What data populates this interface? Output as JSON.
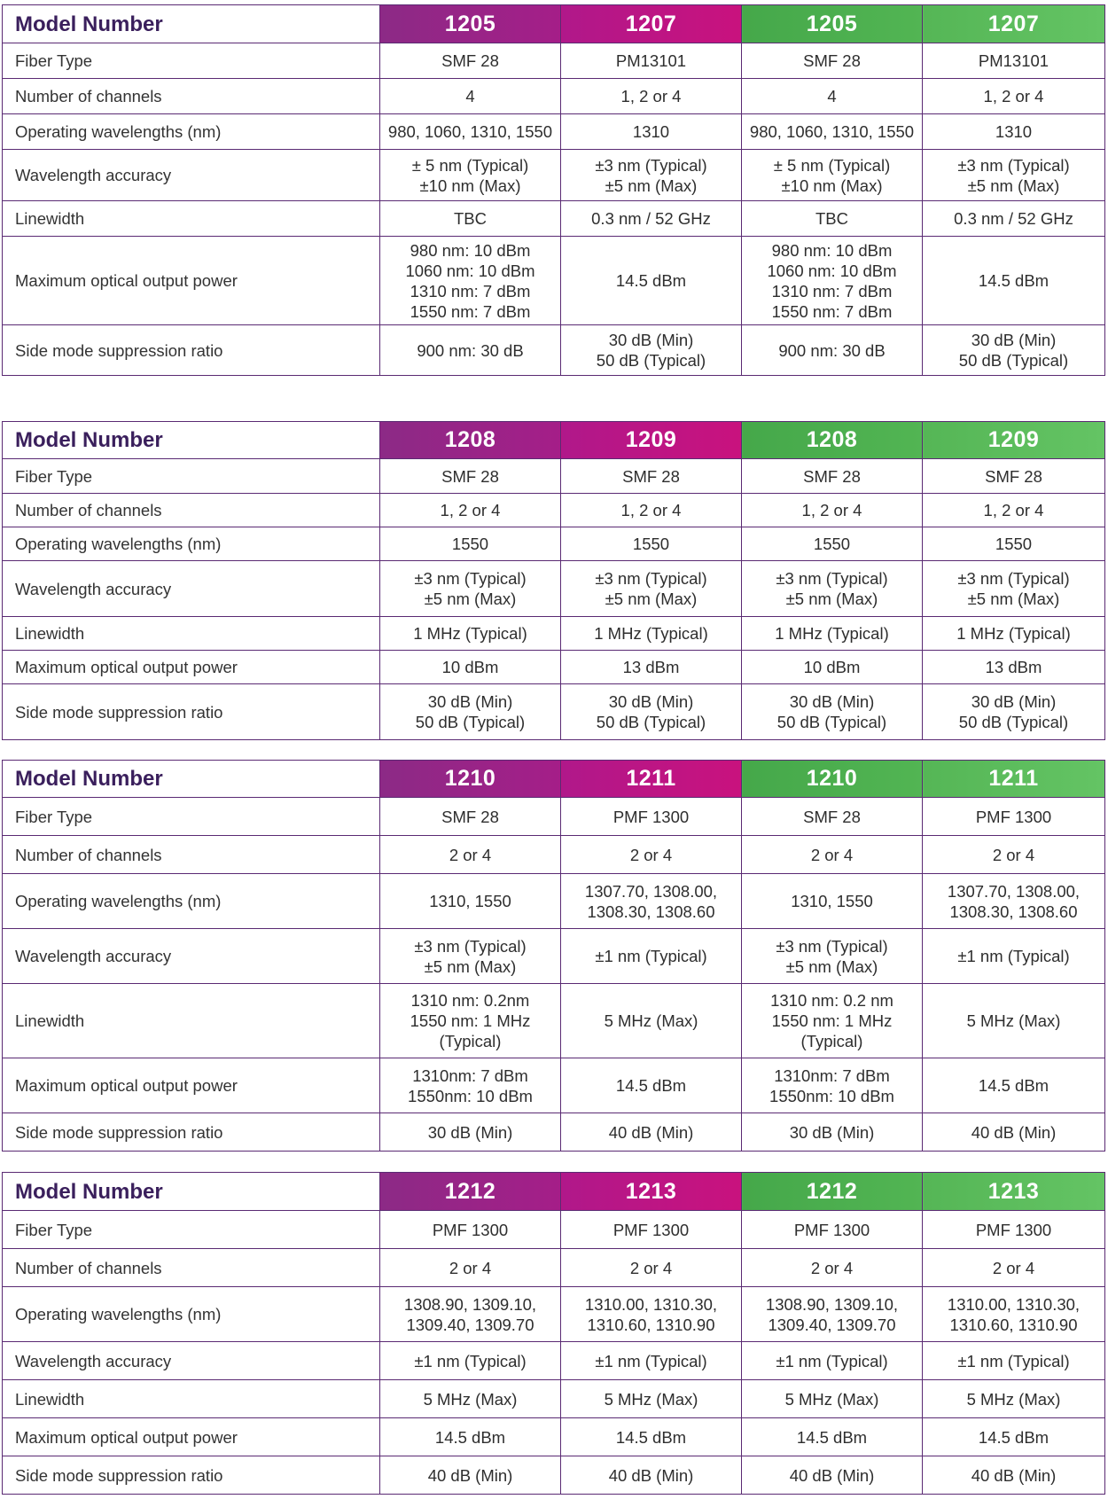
{
  "tables": [
    {
      "header": {
        "label": "Model Number",
        "models": [
          "1205",
          "1207",
          "1205",
          "1207"
        ]
      },
      "rows": [
        {
          "label": "Fiber Type",
          "values": [
            "SMF 28",
            "PM13101",
            "SMF 28",
            "PM13101"
          ]
        },
        {
          "label": "Number of channels",
          "values": [
            "4",
            "1, 2 or 4",
            "4",
            "1, 2 or 4"
          ]
        },
        {
          "label": "Operating wavelengths (nm)",
          "values": [
            "980, 1060, 1310, 1550",
            "1310",
            "980, 1060, 1310, 1550",
            "1310"
          ]
        },
        {
          "label": "Wavelength accuracy",
          "values": [
            "± 5 nm (Typical)\n±10 nm (Max)",
            "±3 nm (Typical)\n±5 nm (Max)",
            "± 5 nm (Typical)\n±10 nm (Max)",
            "±3 nm (Typical)\n±5 nm (Max)"
          ]
        },
        {
          "label": "Linewidth",
          "values": [
            "TBC",
            "0.3 nm / 52 GHz",
            "TBC",
            "0.3 nm / 52 GHz"
          ]
        },
        {
          "label": "Maximum optical output power",
          "values": [
            "980 nm: 10 dBm\n1060 nm: 10 dBm\n1310 nm: 7 dBm\n1550 nm: 7 dBm",
            "14.5 dBm",
            "980 nm: 10 dBm\n1060 nm: 10 dBm\n1310 nm: 7 dBm\n1550 nm: 7 dBm",
            "14.5 dBm"
          ]
        },
        {
          "label": "Side mode suppression ratio",
          "values": [
            "900 nm: 30 dB",
            "30 dB (Min)\n50 dB (Typical)",
            "900 nm: 30 dB",
            "30 dB (Min)\n50 dB (Typical)"
          ]
        }
      ]
    },
    {
      "header": {
        "label": "Model Number",
        "models": [
          "1208",
          "1209",
          "1208",
          "1209"
        ]
      },
      "rows": [
        {
          "label": "Fiber Type",
          "values": [
            "SMF 28",
            "SMF 28",
            "SMF 28",
            "SMF 28"
          ]
        },
        {
          "label": "Number of channels",
          "values": [
            "1, 2 or 4",
            "1, 2 or 4",
            "1, 2 or 4",
            "1, 2 or 4"
          ]
        },
        {
          "label": "Operating wavelengths (nm)",
          "values": [
            "1550",
            "1550",
            "1550",
            "1550"
          ]
        },
        {
          "label": "Wavelength accuracy",
          "values": [
            "±3 nm (Typical)\n±5 nm (Max)",
            "±3 nm (Typical)\n±5 nm (Max)",
            "±3 nm (Typical)\n±5 nm (Max)",
            "±3 nm (Typical)\n±5 nm (Max)"
          ]
        },
        {
          "label": "Linewidth",
          "values": [
            "1 MHz (Typical)",
            "1 MHz (Typical)",
            "1 MHz (Typical)",
            "1 MHz (Typical)"
          ]
        },
        {
          "label": "Maximum optical output power",
          "values": [
            "10 dBm",
            "13 dBm",
            "10 dBm",
            "13 dBm"
          ]
        },
        {
          "label": "Side mode suppression ratio",
          "values": [
            "30 dB (Min)\n50 dB (Typical)",
            "30 dB (Min)\n50 dB (Typical)",
            "30 dB (Min)\n50 dB (Typical)",
            "30 dB (Min)\n50 dB (Typical)"
          ]
        }
      ]
    },
    {
      "header": {
        "label": "Model Number",
        "models": [
          "1210",
          "1211",
          "1210",
          "1211"
        ]
      },
      "rows": [
        {
          "label": "Fiber Type",
          "values": [
            "SMF 28",
            "PMF 1300",
            "SMF 28",
            "PMF 1300"
          ]
        },
        {
          "label": "Number of channels",
          "values": [
            "2 or 4",
            "2 or 4",
            "2 or 4",
            "2 or 4"
          ]
        },
        {
          "label": "Operating wavelengths (nm)",
          "values": [
            "1310, 1550",
            "1307.70, 1308.00,\n1308.30, 1308.60",
            "1310, 1550",
            "1307.70, 1308.00,\n1308.30, 1308.60"
          ]
        },
        {
          "label": "Wavelength accuracy",
          "values": [
            "±3 nm (Typical)\n±5 nm (Max)",
            "±1 nm (Typical)",
            "±3 nm (Typical)\n±5 nm (Max)",
            "±1 nm (Typical)"
          ]
        },
        {
          "label": "Linewidth",
          "values": [
            "1310 nm: 0.2nm\n1550 nm: 1 MHz\n(Typical)",
            "5 MHz (Max)",
            "1310 nm: 0.2 nm\n1550 nm: 1 MHz\n(Typical)",
            "5 MHz (Max)"
          ]
        },
        {
          "label": "Maximum optical output power",
          "values": [
            "1310nm: 7 dBm\n1550nm: 10 dBm",
            "14.5 dBm",
            "1310nm: 7 dBm\n1550nm: 10 dBm",
            "14.5 dBm"
          ]
        },
        {
          "label": "Side mode suppression ratio",
          "values": [
            "30 dB (Min)",
            "40 dB (Min)",
            "30 dB (Min)",
            "40 dB (Min)"
          ]
        }
      ]
    },
    {
      "header": {
        "label": "Model Number",
        "models": [
          "1212",
          "1213",
          "1212",
          "1213"
        ]
      },
      "rows": [
        {
          "label": "Fiber Type",
          "values": [
            "PMF 1300",
            "PMF 1300",
            "PMF 1300",
            "PMF 1300"
          ]
        },
        {
          "label": "Number of channels",
          "values": [
            "2 or 4",
            "2 or 4",
            "2 or 4",
            "2 or 4"
          ]
        },
        {
          "label": "Operating wavelengths (nm)",
          "values": [
            "1308.90, 1309.10,\n1309.40, 1309.70",
            "1310.00, 1310.30,\n1310.60, 1310.90",
            "1308.90, 1309.10,\n1309.40, 1309.70",
            "1310.00, 1310.30,\n1310.60, 1310.90"
          ]
        },
        {
          "label": "Wavelength accuracy",
          "values": [
            "±1 nm (Typical)",
            "±1 nm (Typical)",
            "±1 nm (Typical)",
            "±1  nm (Typical)"
          ]
        },
        {
          "label": "Linewidth",
          "values": [
            "5 MHz (Max)",
            "5 MHz (Max)",
            "5 MHz (Max)",
            "5 MHz (Max)"
          ]
        },
        {
          "label": "Maximum optical output power",
          "values": [
            "14.5 dBm",
            "14.5 dBm",
            "14.5 dBm",
            "14.5 dBm"
          ]
        },
        {
          "label": "Side mode suppression ratio",
          "values": [
            "40 dB (Min)",
            "40 dB (Min)",
            "40 dB (Min)",
            "40 dB (Min)"
          ]
        }
      ]
    }
  ],
  "colors": {
    "header_purple_1": "#a51e88",
    "header_purple_2": "#c9127e",
    "header_green_1": "#52b553",
    "header_green_2": "#64c464",
    "border": "#5a2a73",
    "model_label_text": "#3a1f5c"
  }
}
